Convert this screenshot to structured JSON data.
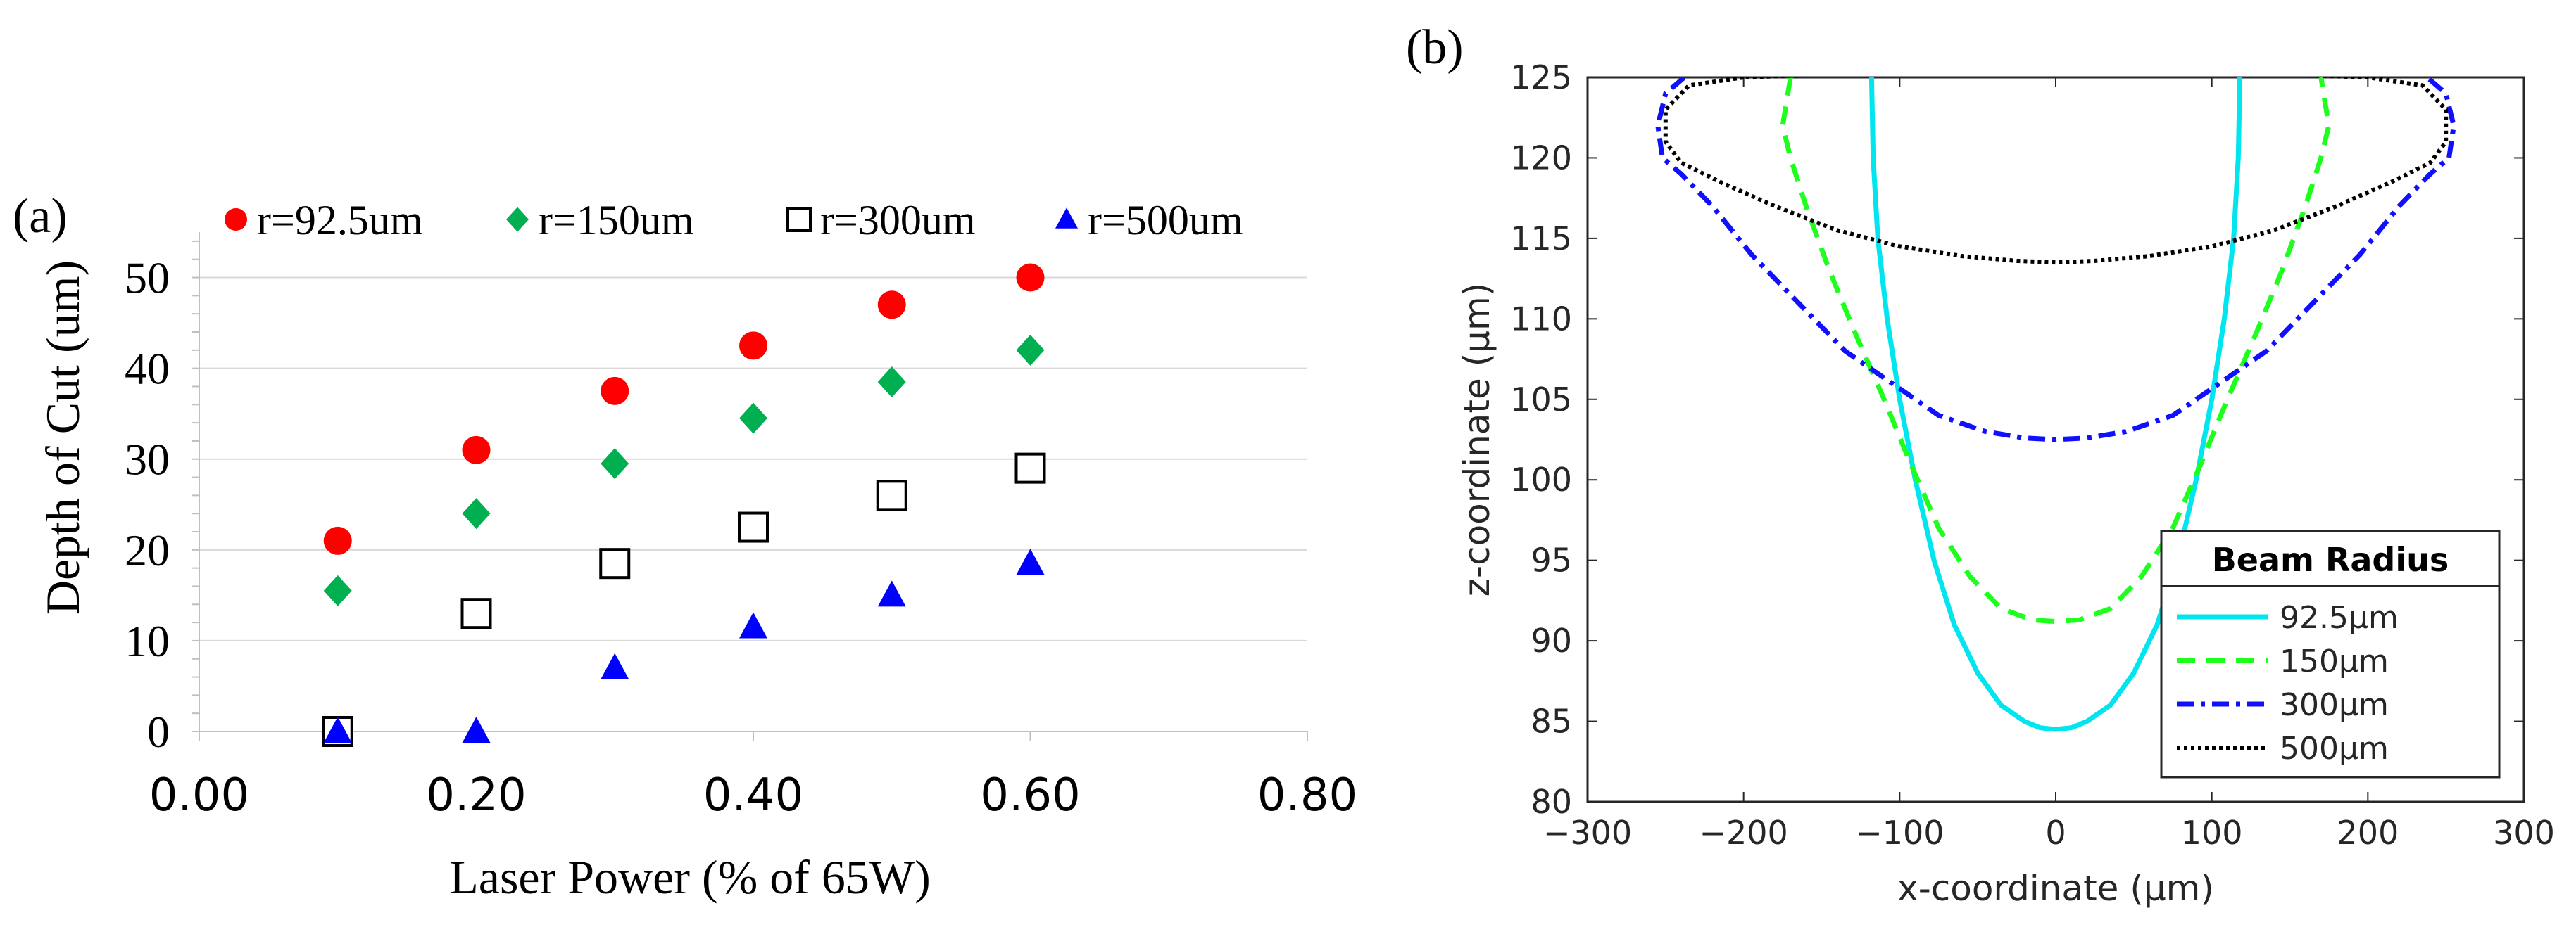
{
  "chart_data": [
    {
      "panel_label": "(a)",
      "type": "scatter",
      "title": "",
      "xlabel": "Laser Power (% of 65W)",
      "ylabel": "Depth of Cut (um)",
      "xlim": [
        0.0,
        0.8
      ],
      "ylim": [
        0,
        55
      ],
      "xticks": [
        0.0,
        0.2,
        0.4,
        0.6,
        0.8
      ],
      "xtick_labels": [
        "0.00",
        "0.20",
        "0.40",
        "0.60",
        "0.80"
      ],
      "yticks": [
        0,
        10,
        20,
        30,
        40,
        50
      ],
      "ytick_labels": [
        "0",
        "10",
        "20",
        "30",
        "40",
        "50"
      ],
      "grid": "horizontal",
      "legend_position": "top",
      "series": [
        {
          "name": "r=92.5um",
          "marker": "circle",
          "color": "#ff0000",
          "x": [
            0.1,
            0.2,
            0.3,
            0.4,
            0.5,
            0.6
          ],
          "y": [
            21,
            31,
            37.5,
            42.5,
            47,
            50
          ]
        },
        {
          "name": "r=150um",
          "marker": "diamond",
          "color": "#00b050",
          "x": [
            0.1,
            0.2,
            0.3,
            0.4,
            0.5,
            0.6
          ],
          "y": [
            15.5,
            24,
            29.5,
            34.5,
            38.5,
            42
          ]
        },
        {
          "name": "r=300um",
          "marker": "square-open",
          "color": "#000000",
          "x": [
            0.1,
            0.2,
            0.3,
            0.4,
            0.5,
            0.6
          ],
          "y": [
            0,
            13,
            18.5,
            22.5,
            26,
            29
          ]
        },
        {
          "name": "r=500um",
          "marker": "triangle",
          "color": "#0000ff",
          "x": [
            0.1,
            0.2,
            0.3,
            0.4,
            0.5,
            0.6
          ],
          "y": [
            0,
            0,
            7,
            11.5,
            15,
            18.5
          ]
        }
      ]
    },
    {
      "panel_label": "(b)",
      "type": "line",
      "title": "",
      "xlabel": "x-coordinate (μm)",
      "ylabel": "z-coordinate (μm)",
      "xlim": [
        -300,
        300
      ],
      "ylim": [
        80,
        125
      ],
      "xticks": [
        -300,
        -200,
        -100,
        0,
        100,
        200,
        300
      ],
      "xtick_labels": [
        "−300",
        "−200",
        "−100",
        "0",
        "100",
        "200",
        "300"
      ],
      "yticks": [
        80,
        85,
        90,
        95,
        100,
        105,
        110,
        115,
        120,
        125
      ],
      "ytick_labels": [
        "80",
        "85",
        "90",
        "95",
        "100",
        "105",
        "110",
        "115",
        "120",
        "125"
      ],
      "grid": "none",
      "legend_title": "Beam Radius",
      "legend_position": "bottom-right",
      "series": [
        {
          "name": "92.5μm",
          "style": "solid",
          "color": "#00e5ee",
          "x": [
            -118,
            -117,
            -114,
            -108,
            -100,
            -90,
            -78,
            -65,
            -50,
            -35,
            -20,
            -10,
            0,
            10,
            20,
            35,
            50,
            65,
            78,
            90,
            100,
            108,
            114,
            117,
            118
          ],
          "y": [
            125,
            120,
            115,
            110,
            105,
            100,
            95,
            91,
            88,
            86,
            85,
            84.6,
            84.5,
            84.6,
            85,
            86,
            88,
            91,
            95,
            100,
            105,
            110,
            115,
            120,
            125
          ]
        },
        {
          "name": "150μm",
          "style": "dashed",
          "color": "#1eff1e",
          "x": [
            -170,
            -175,
            -170,
            -160,
            -145,
            -128,
            -110,
            -93,
            -75,
            -55,
            -35,
            -15,
            0,
            15,
            35,
            55,
            75,
            93,
            110,
            128,
            145,
            160,
            170,
            175,
            170
          ],
          "y": [
            125,
            122,
            120,
            117,
            113,
            109,
            105,
            101,
            97,
            94,
            92,
            91.3,
            91.2,
            91.3,
            92,
            94,
            97,
            101,
            105,
            109,
            113,
            117,
            120,
            122,
            125
          ]
        },
        {
          "name": "300μm",
          "style": "dashdot",
          "color": "#1010ff",
          "x": [
            -238,
            -250,
            -255,
            -252,
            -240,
            -220,
            -195,
            -165,
            -135,
            -105,
            -75,
            -45,
            -20,
            0,
            20,
            45,
            75,
            105,
            135,
            165,
            195,
            220,
            240,
            252,
            255,
            250,
            238
          ],
          "y": [
            125,
            124,
            122,
            120,
            119,
            117,
            114,
            111,
            108,
            106,
            104,
            103,
            102.6,
            102.5,
            102.6,
            103,
            104,
            106,
            108,
            111,
            114,
            117,
            119,
            120,
            122,
            124,
            125
          ]
        },
        {
          "name": "500μm",
          "style": "dotted",
          "color": "#000000",
          "x": [
            -200,
            -235,
            -250,
            -250,
            -240,
            -215,
            -180,
            -140,
            -100,
            -60,
            -25,
            0,
            25,
            60,
            100,
            140,
            180,
            215,
            240,
            250,
            250,
            235,
            200,
            140,
            60,
            0,
            -60,
            -140,
            -200
          ],
          "y": [
            125,
            124.5,
            123,
            121,
            119.7,
            118.5,
            117,
            115.5,
            114.5,
            113.9,
            113.6,
            113.5,
            113.6,
            113.9,
            114.5,
            115.5,
            117,
            118.5,
            119.7,
            121,
            123,
            124.5,
            125,
            125.2,
            125.3,
            125.3,
            125.3,
            125.2,
            125
          ]
        }
      ]
    }
  ]
}
